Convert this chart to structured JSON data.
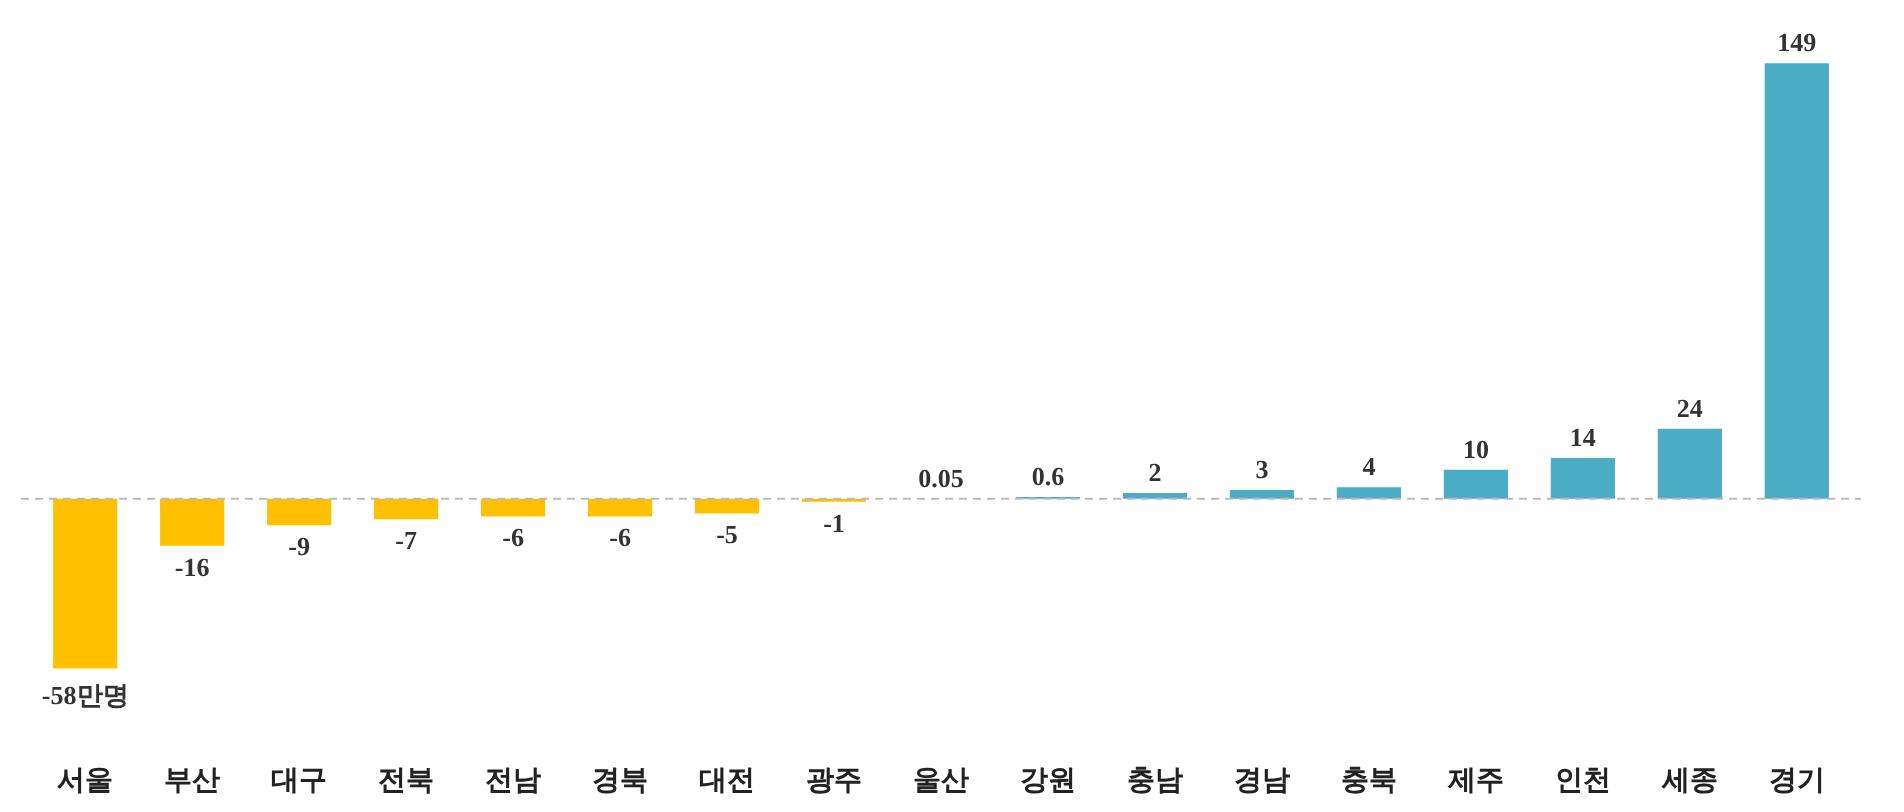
{
  "chart_data": {
    "type": "bar",
    "categories": [
      "서울",
      "부산",
      "대구",
      "전북",
      "전남",
      "경북",
      "대전",
      "광주",
      "울산",
      "강원",
      "충남",
      "경남",
      "충북",
      "제주",
      "인천",
      "세종",
      "경기"
    ],
    "values": [
      -58,
      -16,
      -9,
      -7,
      -6,
      -6,
      -5,
      -1,
      0.05,
      0.6,
      2,
      3,
      4,
      10,
      14,
      24,
      149
    ],
    "colors": [
      "#ffc000",
      "#ffc000",
      "#ffc000",
      "#ffc000",
      "#ffc000",
      "#ffc000",
      "#ffc000",
      "#ffc000",
      "#4bacc6",
      "#4bacc6",
      "#4bacc6",
      "#4bacc6",
      "#4bacc6",
      "#4bacc6",
      "#4bacc6",
      "#4bacc6",
      "#4bacc6"
    ],
    "value_labels": [
      "-58만명",
      "-16",
      "-9",
      "-7",
      "-6",
      "-6",
      "-5",
      "-1",
      "0.05",
      "0.6",
      "2",
      "3",
      "4",
      "10",
      "14",
      "24",
      "149"
    ],
    "ref_lines": [
      {
        "axis": "y",
        "value": 0,
        "color": "#bbbbbb",
        "line_style": "dashed"
      }
    ],
    "grid": false
  }
}
